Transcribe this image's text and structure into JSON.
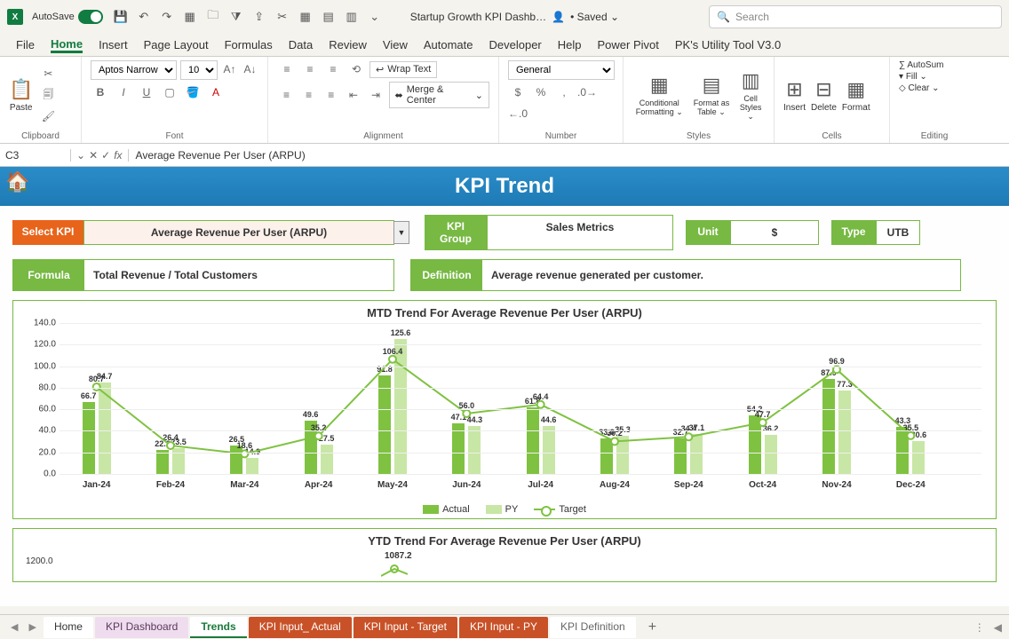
{
  "titlebar": {
    "autosave_label": "AutoSave",
    "autosave_on": "On",
    "doc_name": "Startup Growth KPI Dashb…",
    "saved": "• Saved ⌄",
    "search_placeholder": "Search"
  },
  "ribbon_tabs": [
    "File",
    "Home",
    "Insert",
    "Page Layout",
    "Formulas",
    "Data",
    "Review",
    "View",
    "Automate",
    "Developer",
    "Help",
    "Power Pivot",
    "PK's Utility Tool V3.0"
  ],
  "ribbon_active": "Home",
  "ribbon": {
    "paste": "Paste",
    "font_name": "Aptos Narrow",
    "font_size": "10",
    "wrap": "Wrap Text",
    "merge": "Merge & Center",
    "number_format": "General",
    "cond": "Conditional Formatting ⌄",
    "fmt_table": "Format as Table ⌄",
    "cell_styles": "Cell Styles ⌄",
    "insert": "Insert",
    "delete": "Delete",
    "format": "Format",
    "autosum": "AutoSum",
    "fill": "Fill ⌄",
    "clear": "Clear ⌄",
    "groups": {
      "clipboard": "Clipboard",
      "font": "Font",
      "align": "Alignment",
      "number": "Number",
      "styles": "Styles",
      "cells": "Cells",
      "editing": "Editing"
    }
  },
  "formula_bar": {
    "cell": "C3",
    "value": "Average Revenue Per User (ARPU)"
  },
  "banner": "KPI Trend",
  "kpi": {
    "select_label": "Select KPI",
    "kpi_name": "Average Revenue Per User (ARPU)",
    "group_label": "KPI Group",
    "group_value": "Sales Metrics",
    "unit_label": "Unit",
    "unit_value": "$",
    "type_label": "Type",
    "type_value": "UTB",
    "formula_label": "Formula",
    "formula_value": "Total Revenue / Total Customers",
    "definition_label": "Definition",
    "definition_value": "Average revenue generated per customer."
  },
  "chart1": {
    "title": "MTD Trend For Average Revenue Per User (ARPU)",
    "months": [
      "Jan-24",
      "Feb-24",
      "Mar-24",
      "Apr-24",
      "May-24",
      "Jun-24",
      "Jul-24",
      "Aug-24",
      "Sep-24",
      "Oct-24",
      "Nov-24",
      "Dec-24"
    ],
    "actual": [
      66.7,
      22.2,
      26.5,
      49.6,
      91.8,
      47.1,
      61.8,
      33.0,
      32.7,
      54.2,
      87.9,
      43.3
    ],
    "py": [
      84.7,
      23.5,
      14.9,
      27.5,
      125.6,
      44.3,
      44.6,
      35.3,
      37.1,
      36.2,
      77.3,
      30.6
    ],
    "target": [
      80.7,
      26.4,
      18.6,
      35.2,
      106.4,
      56.0,
      64.4,
      30.2,
      34.4,
      47.7,
      96.9,
      35.5
    ],
    "ylim": [
      0,
      140
    ],
    "ystep": 20,
    "colors": {
      "actual": "#7fc241",
      "py": "#c8e6a5",
      "target_line": "#7fc241",
      "grid": "#eeeeee"
    },
    "legend": {
      "actual": "Actual",
      "py": "PY",
      "target": "Target"
    }
  },
  "chart2": {
    "title": "YTD Trend For Average Revenue Per User (ARPU)",
    "ymax_label": "1200.0",
    "peak_label": "1087.2"
  },
  "sheet_tabs": [
    "Home",
    "KPI Dashboard",
    "Trends",
    "KPI Input_ Actual",
    "KPI Input - Target",
    "KPI Input - PY",
    "KPI Definition"
  ],
  "sheet_tab_styles": [
    "plain",
    "pink",
    "active",
    "red",
    "red",
    "red",
    "def"
  ]
}
